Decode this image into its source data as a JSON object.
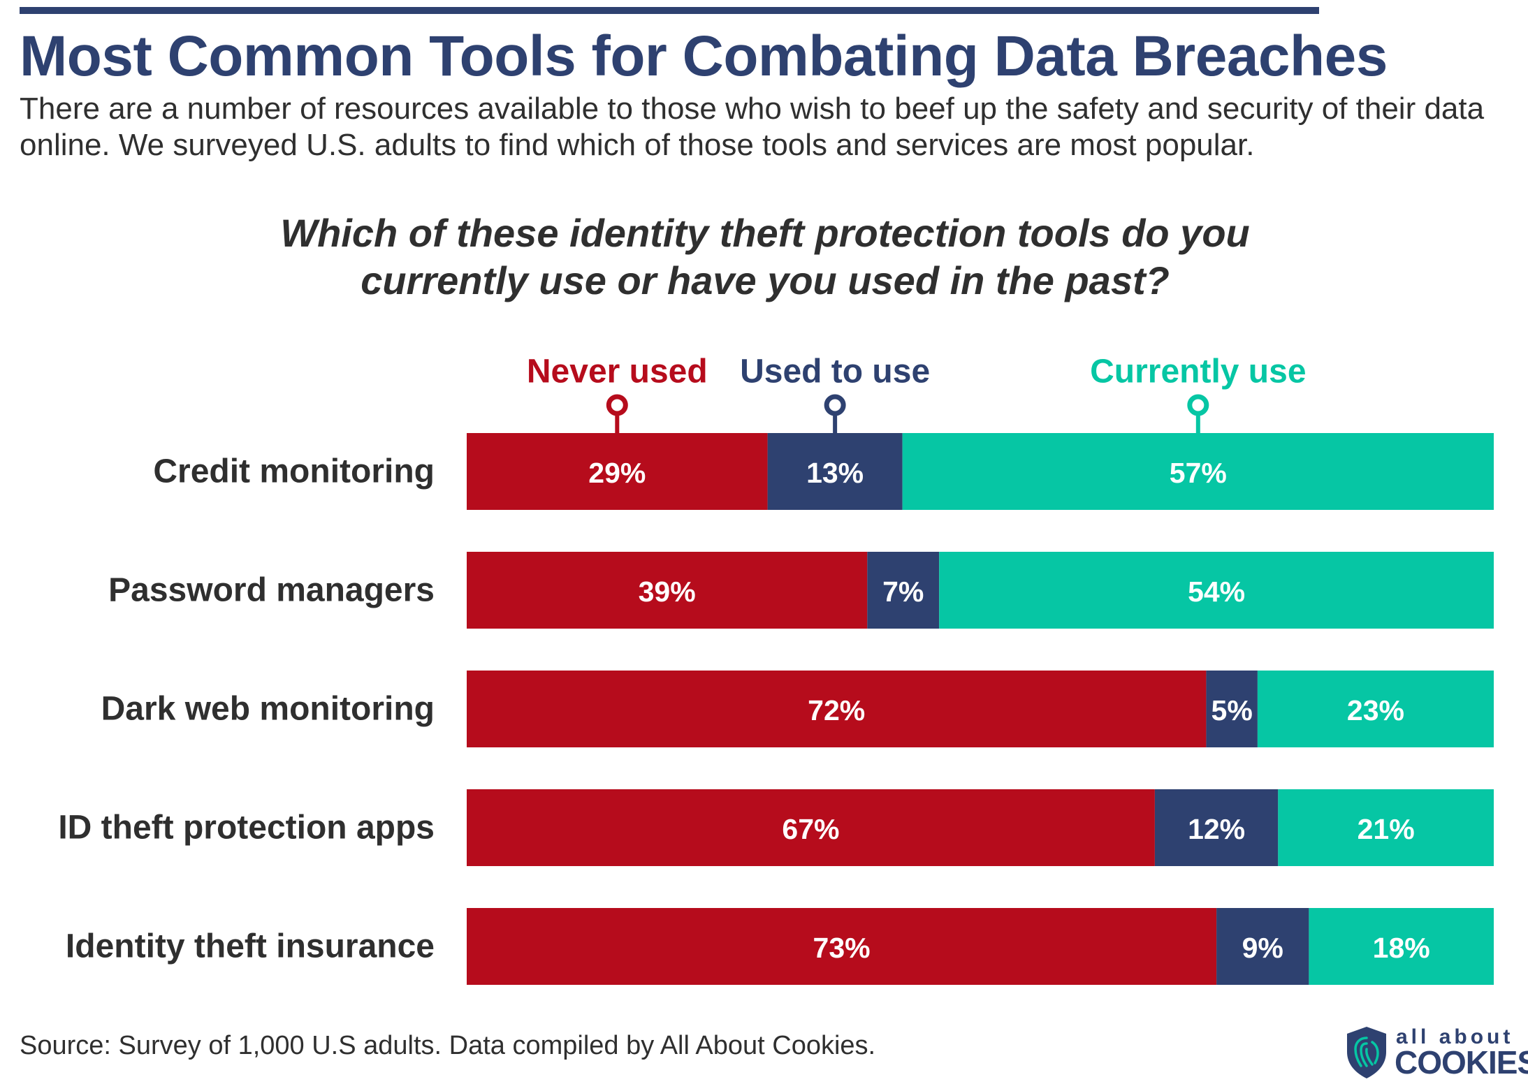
{
  "header": {
    "title": "Most Common Tools for Combating Data Breaches",
    "subtitle": "There are a number of resources available to those who wish to beef up the safety and security of their data online. We surveyed U.S. adults to find which of those tools and services are most popular."
  },
  "chart_data": {
    "type": "bar",
    "orientation": "horizontal",
    "stacked": true,
    "title": "Which of these identity theft protection tools do you currently use or have you used in the past?",
    "categories": [
      "Credit monitoring",
      "Password managers",
      "Dark web monitoring",
      "ID theft protection apps",
      "Identity theft insurance"
    ],
    "series": [
      {
        "name": "Never used",
        "color": "#b60c1c",
        "values": [
          29,
          39,
          72,
          67,
          73
        ]
      },
      {
        "name": "Used to use",
        "color": "#2e4170",
        "values": [
          13,
          7,
          5,
          12,
          9
        ]
      },
      {
        "name": "Currently use",
        "color": "#06c6a4",
        "values": [
          57,
          54,
          23,
          21,
          18
        ]
      }
    ],
    "value_format": "percent",
    "legend_placement": "top",
    "grid": false
  },
  "footer": {
    "source": "Source: Survey of 1,000 U.S adults.  Data compiled by All About Cookies."
  },
  "brand": {
    "small": "all about",
    "big": "COOKIES",
    "icon": "shield-fingerprint-icon"
  }
}
